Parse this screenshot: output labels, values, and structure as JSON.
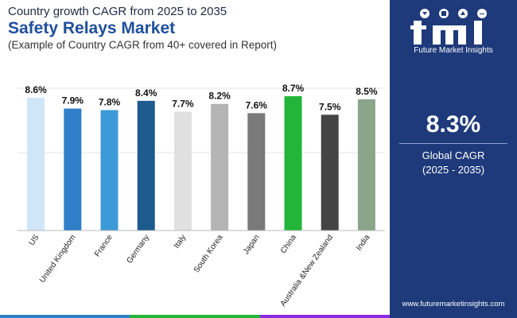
{
  "header": {
    "subtitle_top": "Country growth CAGR from 2025 to 2035",
    "title": "Safety Relays Market",
    "subtitle": "(Example of Country CAGR from 40+ covered in Report)"
  },
  "chart_data": {
    "type": "bar",
    "categories": [
      "US",
      "United Kingdom",
      "France",
      "Germany",
      "Italy",
      "South Korea",
      "Japan",
      "China",
      "Australia &New Zealand",
      "India"
    ],
    "values": [
      8.6,
      7.9,
      7.8,
      8.4,
      7.7,
      8.2,
      7.6,
      8.7,
      7.5,
      8.5
    ],
    "value_labels": [
      "8.6%",
      "7.9%",
      "7.8%",
      "8.4%",
      "7.7%",
      "8.2%",
      "7.6%",
      "8.7%",
      "7.5%",
      "8.5%"
    ],
    "colors": [
      "#cfe6f8",
      "#2f7fc8",
      "#3d9ad8",
      "#1d5a8e",
      "#e0e0e0",
      "#b4b4b4",
      "#7a7a7a",
      "#22b53a",
      "#444444",
      "#8aa58a"
    ],
    "title": "",
    "xlabel": "",
    "ylabel": "",
    "ylim": [
      0,
      10
    ],
    "grid": true
  },
  "sidebar": {
    "logo_caption": "Future Market Insights",
    "kpi_value": "8.3%",
    "kpi_label": "Global CAGR",
    "kpi_period": "(2025 - 2035)",
    "website": "www.futuremarketinsights.com",
    "background": "#1f3a7a"
  },
  "bottom_strip_colors": [
    "#2f7fc8",
    "#22b53a",
    "#8a2be2"
  ]
}
